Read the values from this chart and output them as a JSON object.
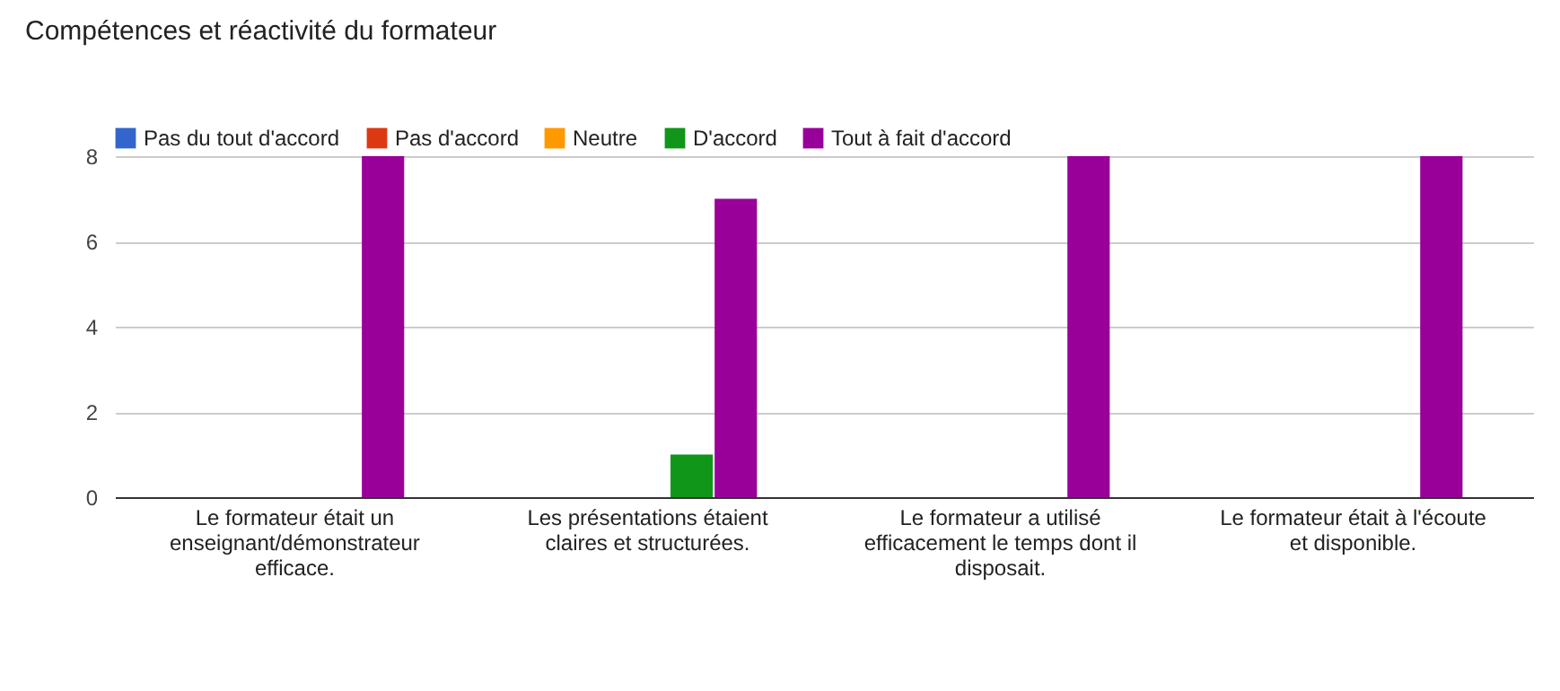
{
  "chart_data": {
    "type": "bar",
    "title": "Compétences et réactivité du formateur",
    "categories": [
      "Le formateur était un enseignant/démonstrateur efficace.",
      "Les présentations étaient claires et structurées.",
      "Le formateur a utilisé efficacement le temps dont il disposait.",
      "Le formateur était à l'écoute et disponible."
    ],
    "series": [
      {
        "name": "Pas du tout d'accord",
        "color": "#3366cc",
        "values": [
          0,
          0,
          0,
          0
        ]
      },
      {
        "name": "Pas d'accord",
        "color": "#dc3912",
        "values": [
          0,
          0,
          0,
          0
        ]
      },
      {
        "name": "Neutre",
        "color": "#ff9900",
        "values": [
          0,
          0,
          0,
          0
        ]
      },
      {
        "name": "D'accord",
        "color": "#109618",
        "values": [
          0,
          1,
          0,
          0
        ]
      },
      {
        "name": "Tout à fait d'accord",
        "color": "#990099",
        "values": [
          8,
          7,
          8,
          8
        ]
      }
    ],
    "ylim": [
      0,
      8
    ],
    "yticks": [
      0,
      2,
      4,
      6,
      8
    ],
    "grid": "y",
    "legend": "top left"
  }
}
